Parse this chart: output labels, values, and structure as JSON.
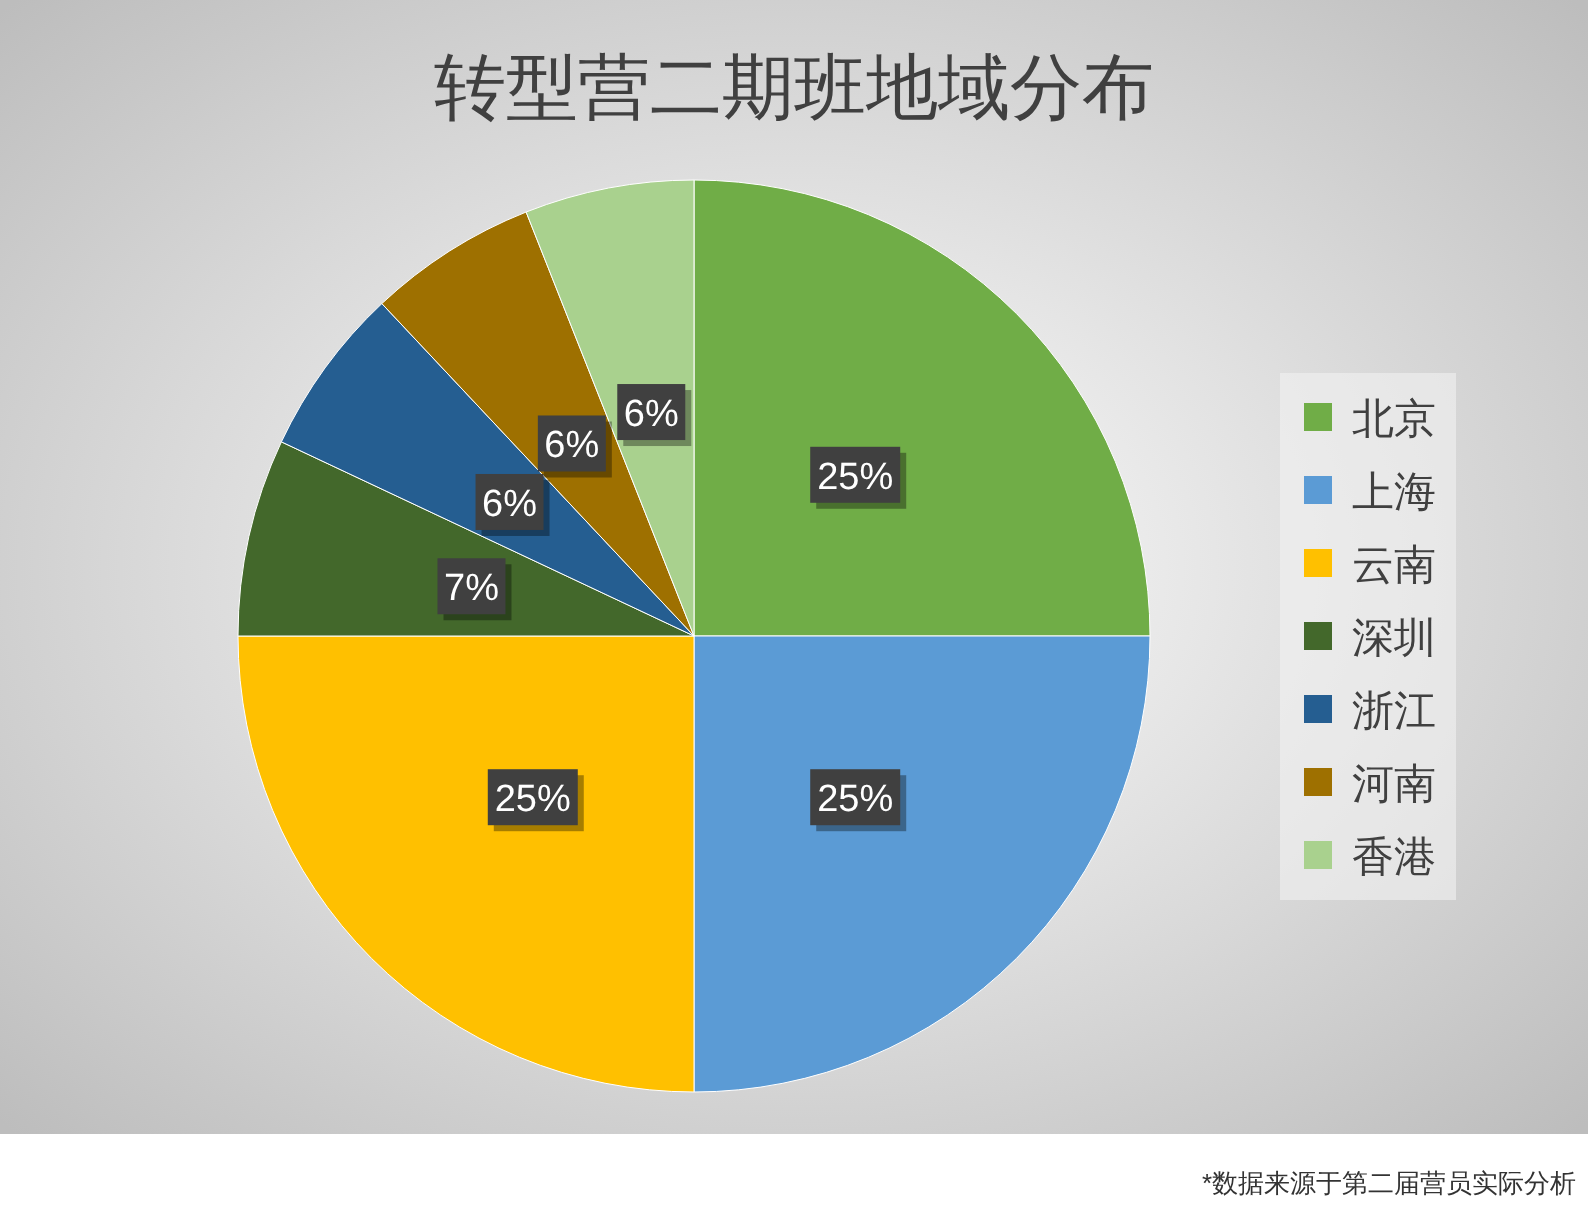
{
  "chart_data": {
    "type": "pie",
    "title": "转型营二期班地域分布",
    "categories": [
      "北京",
      "上海",
      "云南",
      "深圳",
      "浙江",
      "河南",
      "香港"
    ],
    "values": [
      25,
      25,
      25,
      7,
      6,
      6,
      6
    ],
    "colors": [
      "#70ad47",
      "#5b9bd5",
      "#ffc000",
      "#43682b",
      "#255e91",
      "#9e7000",
      "#a9d18e"
    ],
    "value_labels": [
      "25%",
      "25%",
      "25%",
      "7%",
      "6%",
      "6%",
      "6%"
    ],
    "legend": "right",
    "annotations": [
      "*数据来源于第二届营员实际分析"
    ]
  }
}
